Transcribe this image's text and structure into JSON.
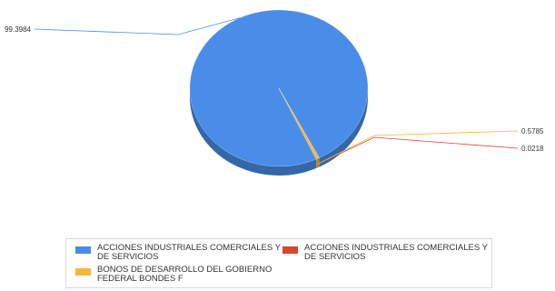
{
  "chart_data": {
    "type": "pie",
    "style": "3d",
    "slices": [
      {
        "name": "ACCIONES INDUSTRIALES COMERCIALES Y DE SERVICIOS",
        "value": 99.3984,
        "label": "99.3984",
        "color": "#4a8de9"
      },
      {
        "name": "ACCIONES INDUSTRIALES COMERCIALES Y DE SERVICIOS",
        "value": 0.0218,
        "label": "0.0218",
        "color": "#d9462a"
      },
      {
        "name": "BONOS DE DESARROLLO DEL GOBIERNO FEDERAL BONDES F",
        "value": 0.5785,
        "label": "0.5785",
        "color": "#f4b63c"
      }
    ],
    "legend_position": "bottom"
  }
}
